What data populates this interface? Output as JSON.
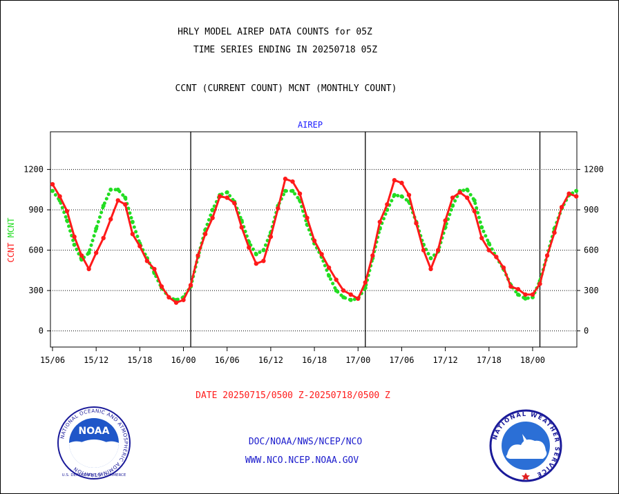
{
  "header": {
    "title_line1": "HRLY MODEL AIREP DATA COUNTS for 05Z",
    "title_line2": "TIME SERIES ENDING IN 20250718 05Z",
    "subtitle": "CCNT (CURRENT COUNT) MCNT (MONTHLY COUNT)"
  },
  "footer": {
    "date_range": "DATE 20250715/0500 Z-20250718/0500 Z",
    "link1": "DOC/NOAA/NWS/NCEP/NCO",
    "link2": "WWW.NCO.NCEP.NOAA.GOV"
  },
  "logos": {
    "noaa_text": "NOAA",
    "noaa_ring_text": "NATIONAL OCEANIC AND ATMOSPHERIC ADMINISTRATION",
    "noaa_ring_bottom": "U.S. DEPARTMENT OF COMMERCE",
    "nws_ring_text": "NATIONAL WEATHER SERVICE"
  },
  "colors": {
    "ccnt": "#ff1a1a",
    "mcnt": "#22dd22",
    "title": "#1a1aff",
    "date": "#ff1a1a",
    "link": "#1a1acc"
  },
  "chart_data": {
    "type": "line",
    "title": "AIREP",
    "ylabel_left_1": "CCNT",
    "ylabel_left_2": "MCNT",
    "xlabel": "",
    "ylim": [
      -120,
      1480
    ],
    "yticks": [
      0,
      300,
      600,
      900,
      1200
    ],
    "ytick_labels": [
      "0",
      "300",
      "600",
      "900",
      "1200"
    ],
    "x_range_hours": [
      0,
      72
    ],
    "x_tick_hours": [
      0,
      6,
      12,
      18,
      24,
      30,
      36,
      42,
      48,
      54,
      60,
      66
    ],
    "x_tick_labels": [
      "15/06",
      "15/12",
      "15/18",
      "16/00",
      "16/06",
      "16/12",
      "16/18",
      "17/00",
      "17/06",
      "17/12",
      "17/18",
      "18/00"
    ],
    "day_boundary_hours": [
      19,
      43,
      67
    ],
    "grid": true,
    "series": [
      {
        "name": "CCNT",
        "style": "solid",
        "color": "#ff1a1a",
        "values": [
          1090,
          1000,
          890,
          700,
          560,
          460,
          580,
          690,
          830,
          970,
          940,
          720,
          630,
          520,
          460,
          330,
          250,
          210,
          230,
          340,
          560,
          720,
          840,
          1000,
          990,
          950,
          770,
          620,
          500,
          520,
          700,
          910,
          1130,
          1110,
          1020,
          840,
          670,
          570,
          470,
          380,
          300,
          270,
          240,
          360,
          560,
          810,
          940,
          1120,
          1100,
          1010,
          800,
          600,
          460,
          600,
          820,
          990,
          1030,
          990,
          890,
          690,
          600,
          550,
          470,
          330,
          310,
          270,
          270,
          350,
          560,
          730,
          920,
          1020,
          1000
        ]
      },
      {
        "name": "MCNT",
        "style": "dotted",
        "color": "#22dd22",
        "values": [
          1040,
          970,
          820,
          640,
          530,
          580,
          760,
          930,
          1050,
          1050,
          990,
          810,
          650,
          540,
          430,
          320,
          250,
          230,
          250,
          330,
          550,
          750,
          900,
          1010,
          1030,
          960,
          820,
          660,
          570,
          600,
          730,
          930,
          1040,
          1040,
          970,
          790,
          650,
          550,
          410,
          300,
          250,
          230,
          240,
          320,
          540,
          760,
          900,
          1010,
          1000,
          960,
          810,
          640,
          540,
          590,
          770,
          930,
          1040,
          1050,
          970,
          770,
          650,
          550,
          460,
          340,
          270,
          240,
          250,
          370,
          560,
          760,
          910,
          1010,
          1040
        ]
      }
    ]
  }
}
